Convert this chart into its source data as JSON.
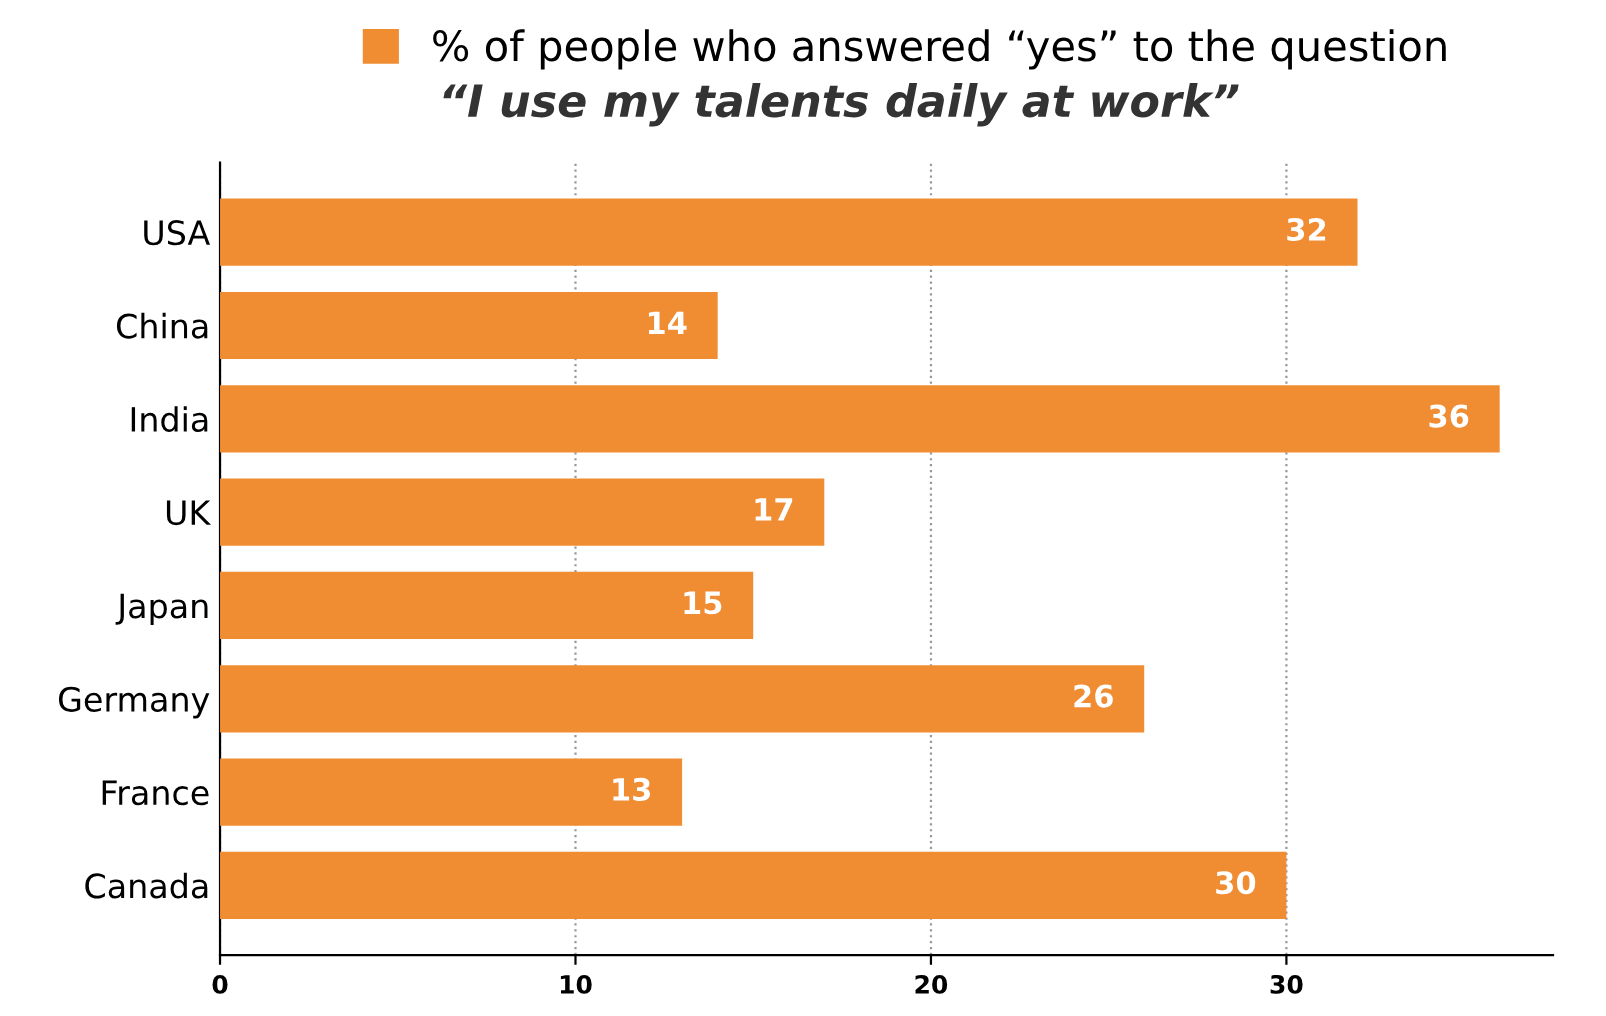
{
  "chart_data": {
    "type": "bar",
    "orientation": "horizontal",
    "title": "“I use my talents daily at work”",
    "categories": [
      "USA",
      "China",
      "India",
      "UK",
      "Japan",
      "Germany",
      "France",
      "Canada"
    ],
    "series": [
      {
        "name": "% of people who answered “yes” to the question",
        "color": "#f08c32",
        "values": [
          32,
          14,
          36,
          17,
          15,
          26,
          13,
          30
        ]
      }
    ],
    "xlim": [
      0,
      37.5
    ],
    "xticks": [
      0,
      10,
      20,
      30
    ],
    "grid": "x",
    "legend": "top",
    "data_labels": true
  }
}
